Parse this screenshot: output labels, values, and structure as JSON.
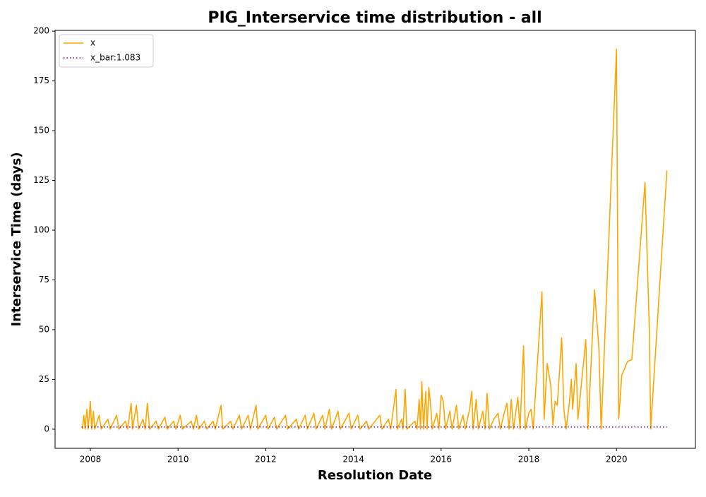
{
  "chart_data": {
    "type": "line",
    "title": "PIG_Interservice time distribution - all",
    "x_label": "Resolution Date",
    "y_label": "Interservice Time (days)",
    "xlim": [
      2007.195,
      2021.8
    ],
    "ylim": [
      -9.6,
      200.4
    ],
    "xticks": [
      2008,
      2010,
      2012,
      2014,
      2016,
      2018,
      2020
    ],
    "yticks": [
      0,
      25,
      50,
      75,
      100,
      125,
      150,
      175,
      200
    ],
    "grid": false,
    "legend": "upper left",
    "series": [
      {
        "name": "x",
        "color": "#ffa500",
        "style": "solid",
        "x": [
          2007.82,
          2007.85,
          2007.88,
          2007.92,
          2007.95,
          2008.0,
          2008.03,
          2008.07,
          2008.1,
          2008.2,
          2008.25,
          2008.4,
          2008.45,
          2008.6,
          2008.65,
          2008.8,
          2008.85,
          2008.93,
          2008.96,
          2009.05,
          2009.1,
          2009.2,
          2009.25,
          2009.3,
          2009.35,
          2009.5,
          2009.55,
          2009.7,
          2009.75,
          2009.9,
          2009.95,
          2010.05,
          2010.1,
          2010.3,
          2010.35,
          2010.42,
          2010.47,
          2010.6,
          2010.65,
          2010.8,
          2010.85,
          2010.98,
          2011.02,
          2011.2,
          2011.25,
          2011.4,
          2011.45,
          2011.6,
          2011.65,
          2011.78,
          2011.82,
          2012.0,
          2012.05,
          2012.2,
          2012.25,
          2012.45,
          2012.5,
          2012.7,
          2012.75,
          2012.9,
          2012.95,
          2013.1,
          2013.15,
          2013.3,
          2013.35,
          2013.45,
          2013.5,
          2013.65,
          2013.7,
          2013.9,
          2013.95,
          2014.1,
          2014.15,
          2014.3,
          2014.35,
          2014.6,
          2014.65,
          2014.8,
          2014.85,
          2014.97,
          2015.0,
          2015.1,
          2015.13,
          2015.18,
          2015.22,
          2015.4,
          2015.45,
          2015.5,
          2015.53,
          2015.56,
          2015.6,
          2015.65,
          2015.68,
          2015.72,
          2015.76,
          2015.8,
          2015.9,
          2015.95,
          2016.0,
          2016.05,
          2016.1,
          2016.2,
          2016.25,
          2016.35,
          2016.4,
          2016.5,
          2016.55,
          2016.65,
          2016.7,
          2016.73,
          2016.8,
          2016.85,
          2016.95,
          2017.0,
          2017.05,
          2017.1,
          2017.2,
          2017.3,
          2017.35,
          2017.45,
          2017.5,
          2017.55,
          2017.6,
          2017.65,
          2017.75,
          2017.8,
          2017.88,
          2017.92,
          2018.0,
          2018.05,
          2018.1,
          2018.3,
          2018.35,
          2018.42,
          2018.5,
          2018.55,
          2018.6,
          2018.65,
          2018.75,
          2018.8,
          2018.85,
          2018.92,
          2018.97,
          2019.0,
          2019.08,
          2019.12,
          2019.3,
          2019.35,
          2019.5,
          2019.6,
          2019.65,
          2020.0,
          2020.05,
          2020.12,
          2020.25,
          2020.35,
          2020.65,
          2020.75,
          2020.78,
          2021.15
        ],
        "values": [
          0,
          7,
          0,
          10,
          0,
          14,
          0,
          9,
          0,
          7,
          0,
          5,
          0,
          7,
          0,
          4,
          0,
          13,
          0,
          12,
          0,
          5,
          0,
          13,
          0,
          4,
          0,
          6,
          0,
          4,
          0,
          7,
          0,
          4,
          0,
          7,
          0,
          4,
          0,
          4,
          0,
          12,
          0,
          4,
          0,
          7,
          0,
          7,
          0,
          12,
          0,
          7,
          0,
          6,
          0,
          7,
          0,
          5,
          0,
          7,
          0,
          8,
          0,
          7,
          0,
          10,
          0,
          9,
          0,
          8,
          0,
          7,
          0,
          4,
          0,
          7,
          0,
          5,
          0,
          20,
          0,
          5,
          0,
          20,
          0,
          4,
          0,
          15,
          0,
          24,
          0,
          19,
          0,
          21,
          12,
          0,
          8,
          0,
          17,
          14,
          0,
          9,
          0,
          12,
          0,
          7,
          0,
          10,
          19,
          0,
          15,
          0,
          9,
          0,
          18,
          0,
          5,
          8,
          0,
          9,
          13,
          0,
          15,
          0,
          16,
          0,
          42,
          0,
          8,
          10,
          0,
          69,
          5,
          33,
          22,
          2,
          14,
          12,
          46,
          10,
          0,
          12,
          25,
          10,
          33,
          5,
          45,
          0,
          70,
          40,
          0,
          191,
          5,
          27,
          34,
          35,
          124,
          50,
          0,
          130
        ]
      },
      {
        "name": "x_bar:1.083",
        "color": "#800080",
        "style": "dotted",
        "x": [
          2007.8,
          2021.15
        ],
        "values": [
          1.083,
          1.083
        ]
      }
    ]
  }
}
